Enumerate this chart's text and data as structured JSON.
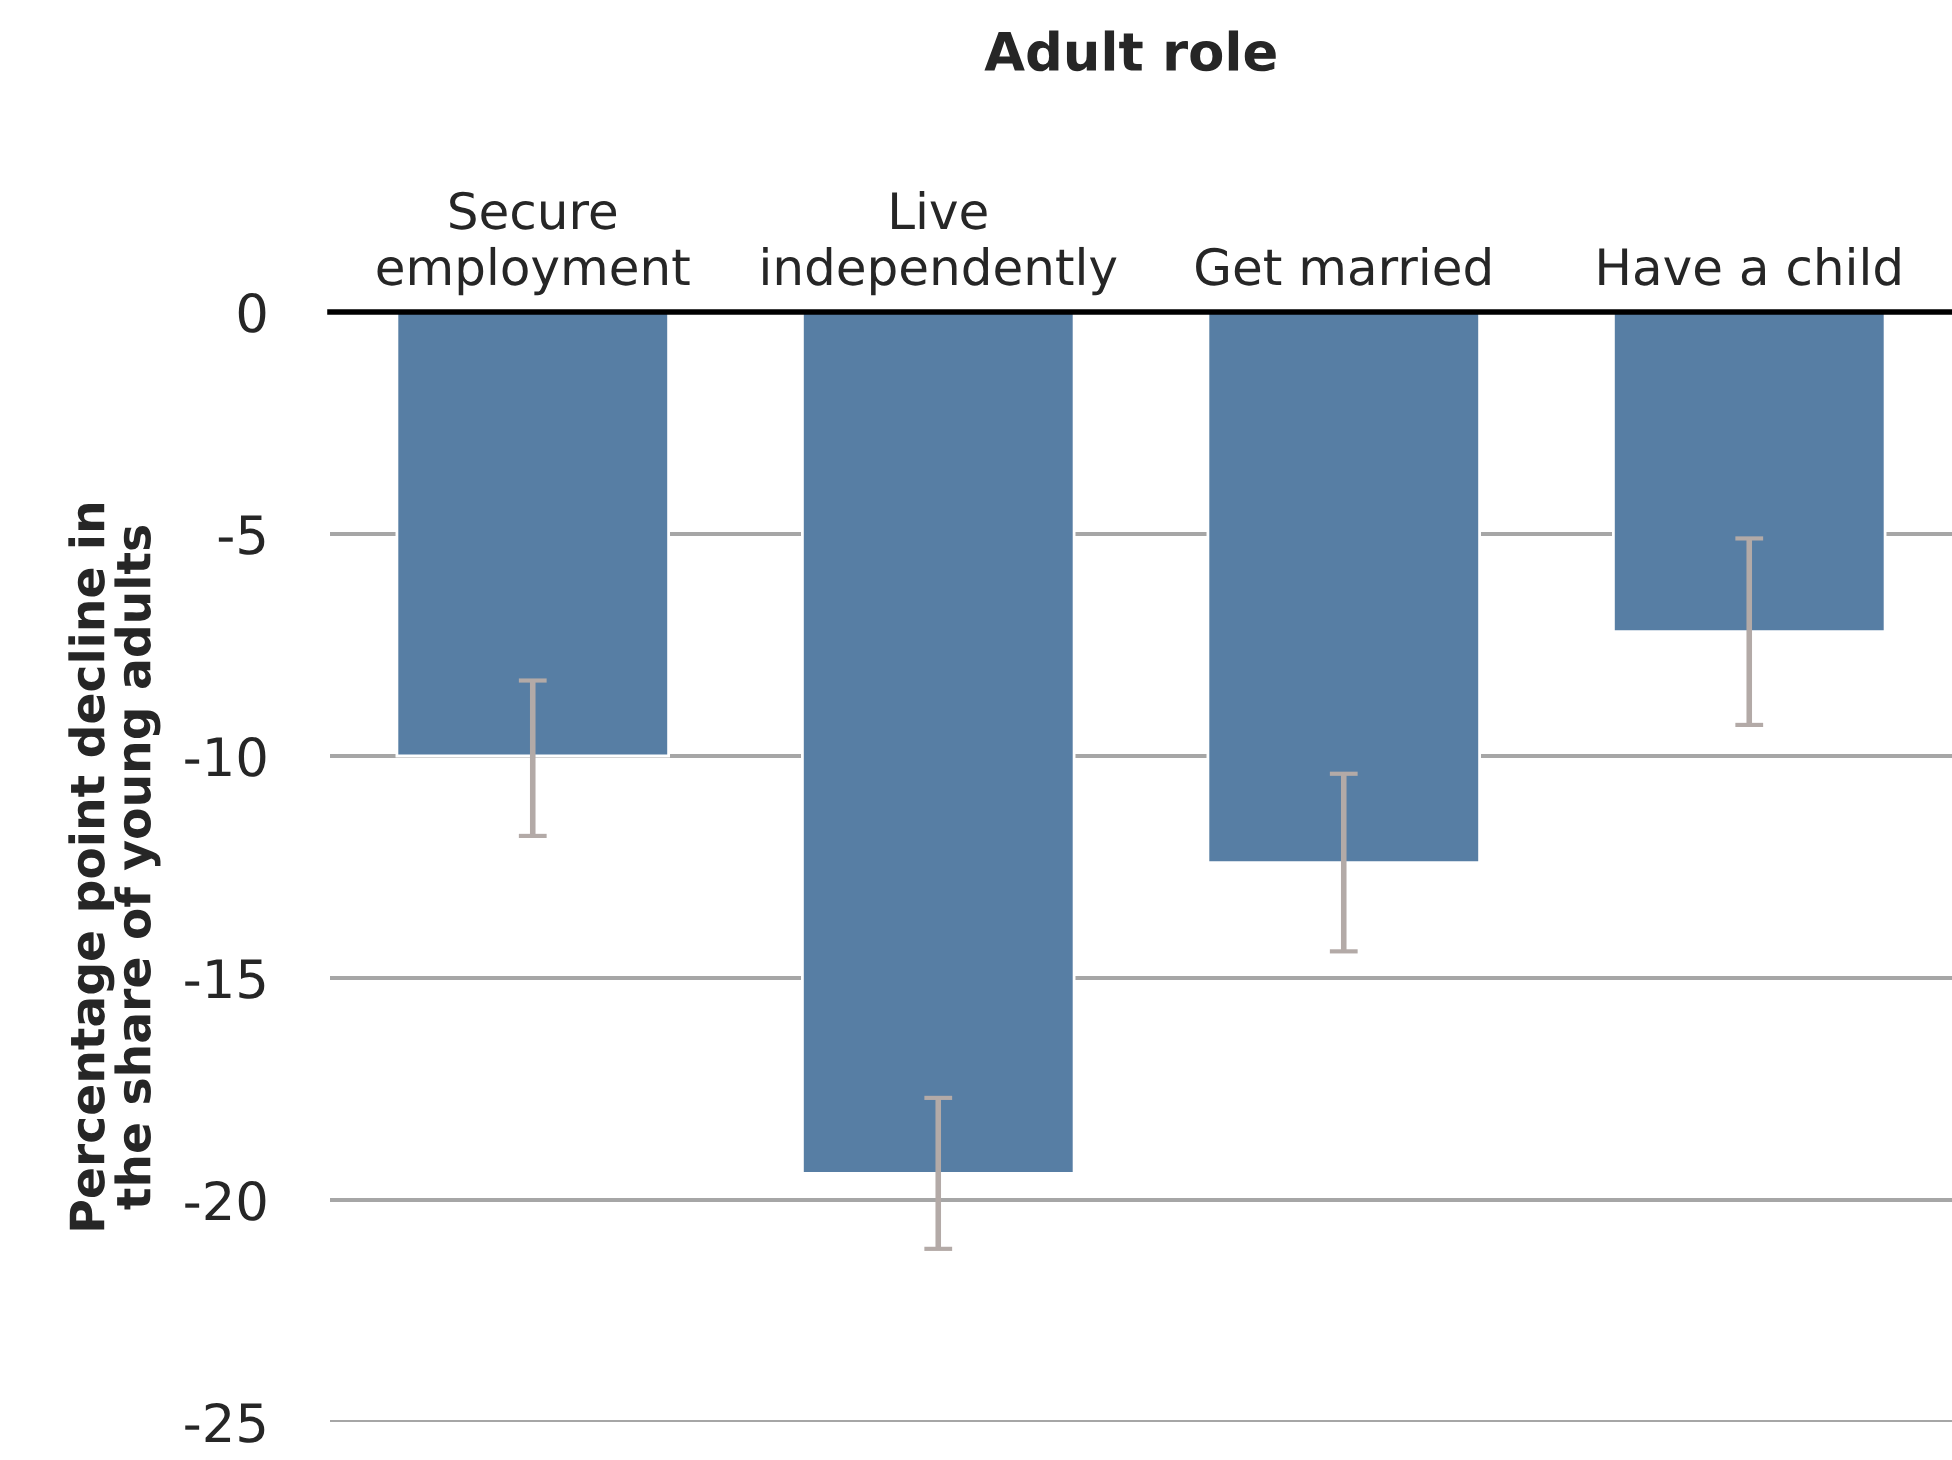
{
  "chart_data": {
    "type": "bar",
    "title": "Adult role",
    "ylabel": "Percentage point decline in\nthe share of young adults",
    "categories": [
      "Secure\nemployment",
      "Live\nindependently",
      "Get married",
      "Have a child"
    ],
    "values": [
      -10.0,
      -19.4,
      -12.4,
      -7.2
    ],
    "errors": [
      [
        -11.8,
        -8.3
      ],
      [
        -21.1,
        -17.7
      ],
      [
        -14.4,
        -10.4
      ],
      [
        -9.3,
        -5.1
      ]
    ],
    "color": "#577ea4",
    "ylim": [
      -25,
      0
    ],
    "yticks": [
      0,
      -5,
      -10,
      -15,
      -20,
      -25
    ],
    "grid": "y"
  }
}
